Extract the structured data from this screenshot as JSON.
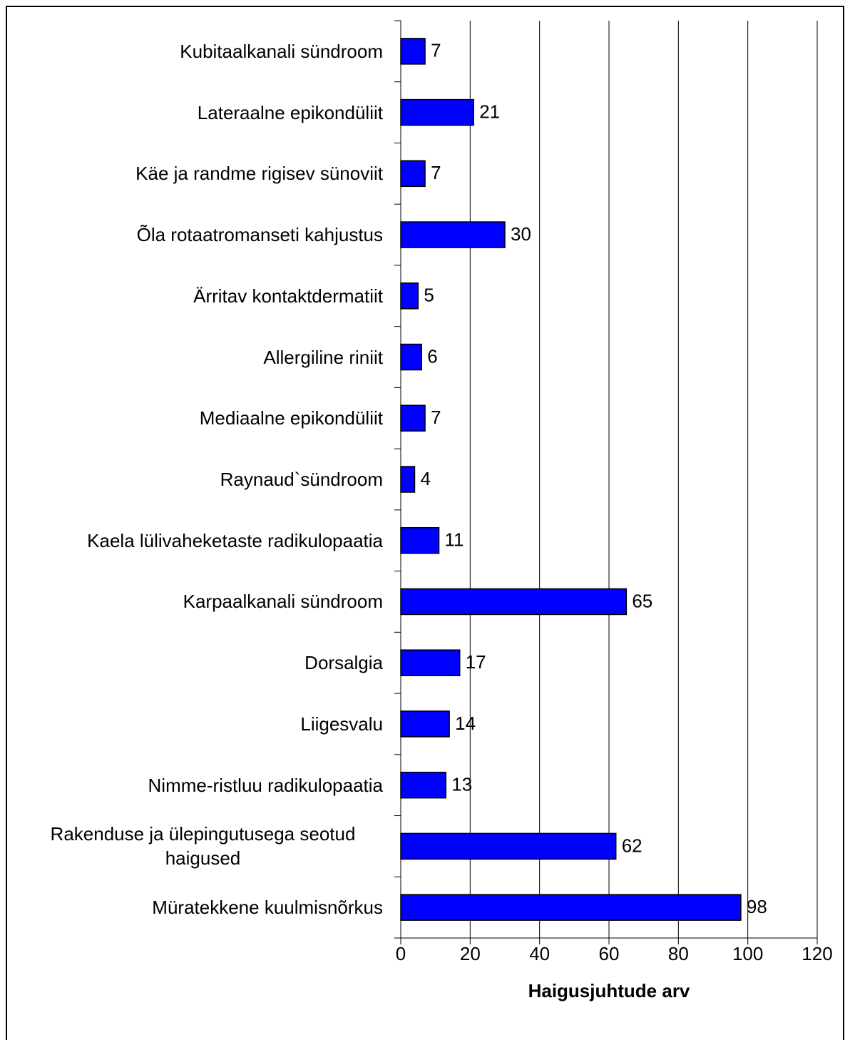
{
  "chart_data": {
    "type": "bar",
    "orientation": "horizontal",
    "xlabel": "Haigusjuhtude arv",
    "categories": [
      "Kubitaalkanali sündroom",
      "Lateraalne epikondüliit",
      "Käe ja randme rigisev sünoviit",
      "Õla rotaatromanseti kahjustus",
      "Ärritav kontaktdermatiit",
      "Allergiline riniit",
      "Mediaalne epikondüliit",
      "Raynaud`sündroom",
      "Kaela lülivaheketaste radikulopaatia",
      "Karpaalkanali sündroom",
      "Dorsalgia",
      "Liigesvalu",
      "Nimme-ristluu radikulopaatia",
      "Rakenduse ja ülepingutusega seotud haigused",
      "Müratekkene kuulmisnõrkus"
    ],
    "values": [
      7,
      21,
      7,
      30,
      5,
      6,
      7,
      4,
      11,
      65,
      17,
      14,
      13,
      62,
      98
    ],
    "color": "#0000ff",
    "xlim": [
      0,
      120
    ],
    "xticks": [
      0,
      20,
      40,
      60,
      80,
      100,
      120
    ],
    "grid": true
  }
}
